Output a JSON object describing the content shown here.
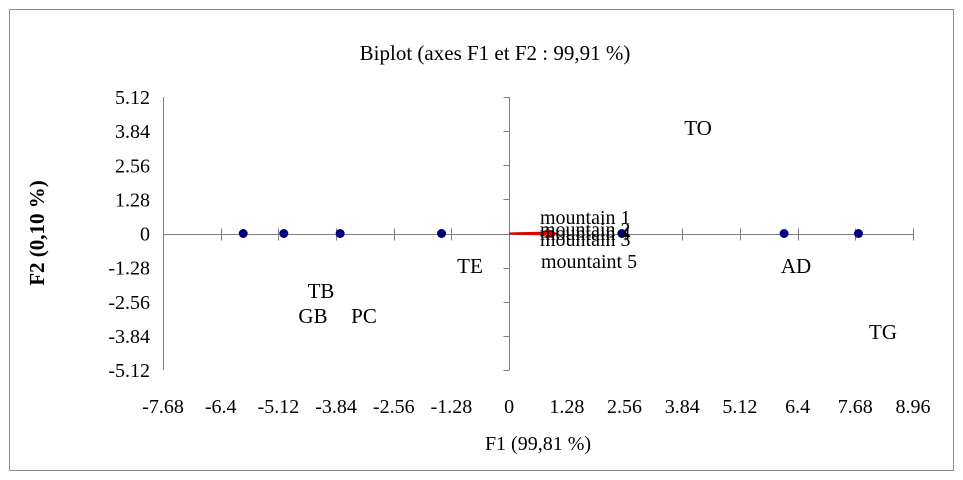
{
  "chart_data": {
    "type": "scatter",
    "title": "Biplot (axes F1 et F2 : 99,91 %)",
    "xlabel": "F1 (99,81 %)",
    "ylabel": "F2 (0,10 %)",
    "xlim": [
      -7.68,
      8.96
    ],
    "ylim": [
      -5.12,
      5.12
    ],
    "x_ticks": [
      "-7.68",
      "-6.4",
      "-5.12",
      "-3.84",
      "-2.56",
      "-1.28",
      "0",
      "1.28",
      "2.56",
      "3.84",
      "5.12",
      "6.4",
      "7.68",
      "8.96"
    ],
    "y_ticks": [
      "5.12",
      "3.84",
      "2.56",
      "1.28",
      "0",
      "-1.28",
      "-2.56",
      "-3.84",
      "-5.12"
    ],
    "observations": [
      {
        "label": "TB",
        "x": -5.9,
        "y": 0
      },
      {
        "label": "GB",
        "x": -5.0,
        "y": 0
      },
      {
        "label": "PC",
        "x": -3.75,
        "y": 0
      },
      {
        "label": "TE",
        "x": -1.5,
        "y": 0
      },
      {
        "label": "TO",
        "x": 2.5,
        "y": 0
      },
      {
        "label": "AD",
        "x": 6.1,
        "y": 0
      },
      {
        "label": "TG",
        "x": 7.75,
        "y": 0
      }
    ],
    "variables": [
      {
        "label": "mountain 1",
        "x": 1.0,
        "y": 0.04
      },
      {
        "label": "mountain 2",
        "x": 1.0,
        "y": 0.02
      },
      {
        "label": "mountain 4",
        "x": 1.0,
        "y": 0.0
      },
      {
        "label": "mountain 3",
        "x": 1.0,
        "y": -0.02
      },
      {
        "label": "mountaint 5",
        "x": 1.0,
        "y": -0.04
      }
    ],
    "colors": {
      "points": "#00007f",
      "vectors": "#dd0000",
      "axes": "#808080"
    }
  }
}
